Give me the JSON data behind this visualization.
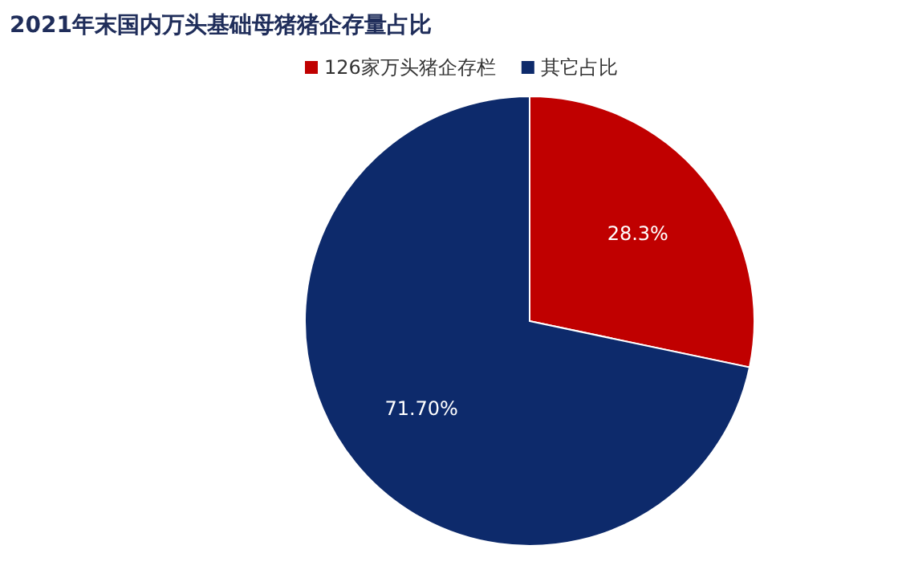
{
  "chart_data": {
    "type": "pie",
    "title": "2021年末国内万头基础母猪猪企存量占比",
    "categories": [
      "126家万头猪企存栏",
      "其它占比"
    ],
    "values": [
      28.3,
      71.7
    ],
    "colors": [
      "#c00000",
      "#0d2a6b"
    ],
    "value_labels": [
      "28.3%",
      "71.70%"
    ],
    "legend": "top"
  }
}
